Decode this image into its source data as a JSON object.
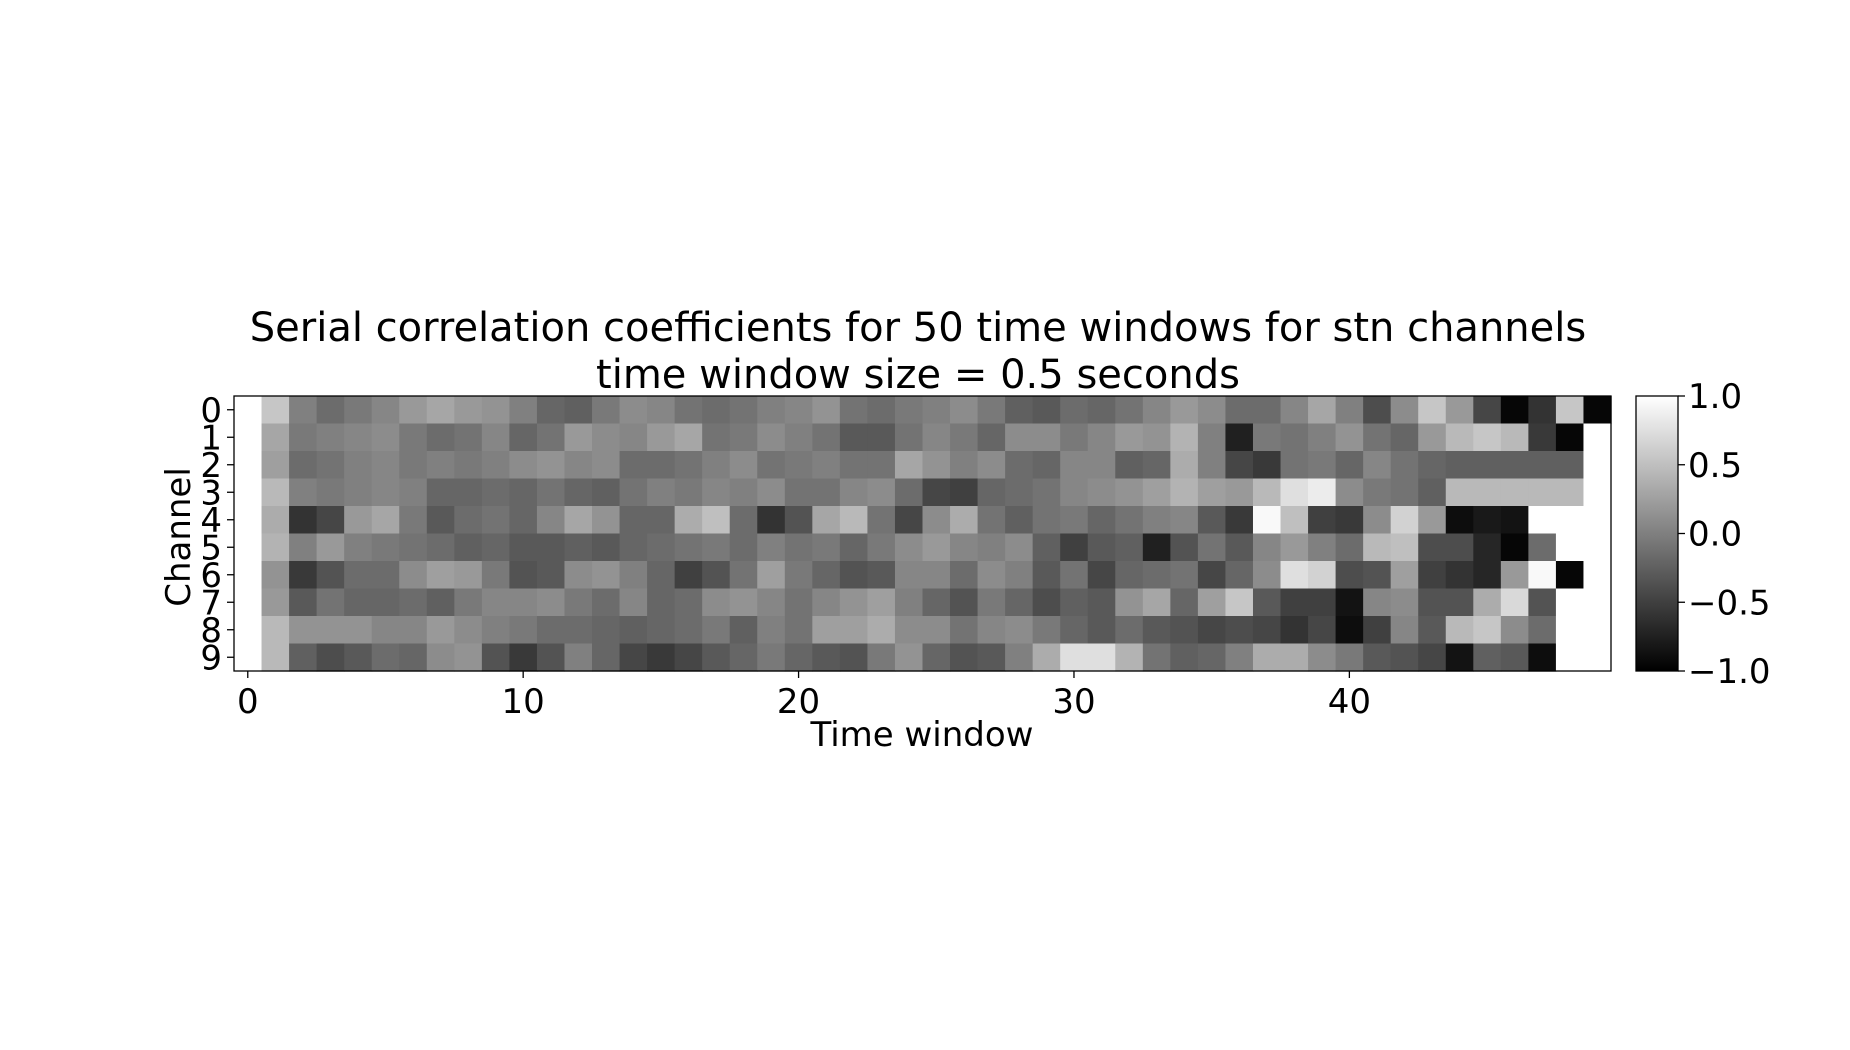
{
  "chart_data": {
    "type": "heatmap",
    "title": "Serial correlation coefficients for 50 time windows for stn channels",
    "subtitle": "time window size = 0.5 seconds",
    "xlabel": "Time window",
    "ylabel": "Channel",
    "x_ticks": [
      "0",
      "10",
      "20",
      "30",
      "40"
    ],
    "x_tick_values": [
      0,
      10,
      20,
      30,
      40
    ],
    "y_ticks": [
      "0",
      "1",
      "2",
      "3",
      "4",
      "5",
      "6",
      "7",
      "8",
      "9"
    ],
    "n_columns": 50,
    "colormap": "gray",
    "vmin": -1.0,
    "vmax": 1.0,
    "colorbar_ticks": [
      "1.0",
      "0.5",
      "0.0",
      "−0.5",
      "−1.0"
    ],
    "colorbar_tick_values": [
      1.0,
      0.5,
      0.0,
      -0.5,
      -1.0
    ],
    "grid": false,
    "values": [
      [
        1.0,
        0.55,
        0.0,
        -0.15,
        -0.05,
        0.05,
        0.2,
        0.3,
        0.2,
        0.15,
        0.0,
        -0.2,
        -0.25,
        -0.05,
        0.1,
        0.05,
        -0.1,
        -0.15,
        -0.1,
        0.0,
        0.05,
        0.15,
        -0.1,
        -0.15,
        -0.05,
        0.0,
        0.1,
        -0.05,
        -0.25,
        -0.3,
        -0.15,
        -0.2,
        -0.1,
        0.05,
        0.2,
        0.1,
        -0.15,
        -0.15,
        0.05,
        0.3,
        0.0,
        -0.4,
        0.1,
        0.55,
        0.2,
        -0.45,
        -0.95,
        -0.6,
        0.55,
        -0.95
      ],
      [
        1.0,
        0.3,
        -0.05,
        0.0,
        0.05,
        0.1,
        -0.05,
        -0.15,
        -0.1,
        0.05,
        -0.2,
        -0.1,
        0.2,
        0.1,
        0.05,
        0.2,
        0.3,
        -0.1,
        -0.05,
        0.1,
        0.0,
        -0.1,
        -0.3,
        -0.3,
        -0.1,
        0.05,
        -0.05,
        -0.2,
        0.1,
        0.1,
        -0.05,
        0.05,
        0.2,
        0.15,
        0.4,
        0.0,
        -0.75,
        -0.05,
        -0.1,
        0.0,
        0.15,
        -0.1,
        -0.2,
        0.2,
        0.45,
        0.55,
        0.45,
        -0.55,
        -0.95,
        null
      ],
      [
        1.0,
        0.25,
        -0.15,
        -0.1,
        0.0,
        0.05,
        -0.05,
        0.0,
        -0.05,
        0.0,
        0.1,
        0.15,
        0.05,
        0.1,
        -0.15,
        -0.15,
        -0.1,
        0.0,
        0.1,
        -0.1,
        -0.05,
        0.0,
        -0.1,
        -0.1,
        0.3,
        0.15,
        0.0,
        0.1,
        -0.15,
        -0.2,
        0.05,
        0.05,
        -0.25,
        -0.2,
        0.35,
        0.0,
        -0.45,
        -0.55,
        -0.1,
        -0.05,
        -0.2,
        0.05,
        -0.1,
        -0.2,
        -0.25,
        -0.25,
        -0.25,
        -0.25,
        -0.25,
        null
      ],
      [
        1.0,
        0.45,
        0.0,
        -0.05,
        0.0,
        0.05,
        0.0,
        -0.2,
        -0.2,
        -0.15,
        -0.2,
        -0.1,
        -0.2,
        -0.25,
        -0.1,
        0.0,
        -0.05,
        0.05,
        0.0,
        0.1,
        -0.1,
        -0.1,
        0.05,
        0.1,
        -0.15,
        -0.45,
        -0.5,
        -0.2,
        -0.15,
        -0.1,
        0.05,
        0.1,
        0.15,
        0.25,
        0.4,
        0.25,
        0.2,
        0.45,
        0.75,
        0.85,
        0.1,
        -0.05,
        -0.1,
        -0.25,
        0.45,
        0.45,
        0.45,
        0.45,
        0.45,
        null
      ],
      [
        1.0,
        0.35,
        -0.6,
        -0.45,
        0.2,
        0.3,
        -0.05,
        -0.3,
        -0.15,
        -0.1,
        -0.2,
        0.05,
        0.3,
        0.15,
        -0.2,
        -0.2,
        0.35,
        0.5,
        -0.15,
        -0.6,
        -0.35,
        0.3,
        0.45,
        -0.1,
        -0.45,
        0.1,
        0.35,
        -0.1,
        -0.25,
        -0.1,
        -0.05,
        -0.2,
        -0.1,
        0.0,
        0.05,
        -0.3,
        -0.55,
        0.95,
        0.5,
        -0.5,
        -0.55,
        0.1,
        0.65,
        0.2,
        -0.9,
        -0.8,
        -0.85,
        null,
        null,
        null
      ],
      [
        1.0,
        0.4,
        0.0,
        0.2,
        0.0,
        -0.05,
        -0.1,
        -0.15,
        -0.25,
        -0.2,
        -0.3,
        -0.3,
        -0.25,
        -0.3,
        -0.2,
        -0.15,
        -0.1,
        -0.05,
        -0.15,
        0.0,
        -0.1,
        -0.05,
        -0.2,
        -0.05,
        0.1,
        0.2,
        0.05,
        0.0,
        0.1,
        -0.25,
        -0.5,
        -0.3,
        -0.25,
        -0.75,
        -0.35,
        -0.1,
        -0.3,
        0.05,
        0.2,
        0.0,
        -0.15,
        0.45,
        0.5,
        -0.4,
        -0.4,
        -0.7,
        -0.95,
        -0.15,
        null,
        null
      ],
      [
        1.0,
        0.15,
        -0.55,
        -0.35,
        -0.15,
        -0.15,
        0.1,
        0.25,
        0.2,
        -0.05,
        -0.35,
        -0.3,
        0.1,
        0.15,
        0.0,
        -0.2,
        -0.5,
        -0.35,
        -0.1,
        0.25,
        -0.05,
        -0.2,
        -0.35,
        -0.3,
        0.05,
        0.05,
        -0.15,
        0.1,
        0.0,
        -0.3,
        -0.1,
        -0.45,
        -0.2,
        -0.15,
        -0.1,
        -0.45,
        -0.2,
        0.1,
        0.75,
        0.65,
        -0.4,
        -0.35,
        0.25,
        -0.5,
        -0.6,
        -0.7,
        0.2,
        0.95,
        -0.95,
        null
      ],
      [
        1.0,
        0.2,
        -0.3,
        -0.1,
        -0.2,
        -0.2,
        -0.15,
        -0.25,
        -0.05,
        0.05,
        0.05,
        0.1,
        -0.05,
        -0.15,
        0.05,
        -0.2,
        -0.15,
        0.1,
        0.15,
        0.05,
        -0.1,
        0.05,
        0.15,
        0.25,
        0.0,
        -0.2,
        -0.35,
        -0.05,
        -0.2,
        -0.4,
        -0.25,
        -0.3,
        0.15,
        0.3,
        -0.2,
        0.25,
        0.55,
        -0.3,
        -0.5,
        -0.5,
        -0.85,
        0.05,
        0.1,
        -0.35,
        -0.35,
        0.35,
        0.7,
        -0.35,
        null,
        null
      ],
      [
        1.0,
        0.45,
        0.15,
        0.15,
        0.15,
        0.05,
        0.05,
        0.2,
        0.1,
        0.0,
        -0.05,
        -0.15,
        -0.15,
        -0.2,
        -0.25,
        -0.2,
        -0.15,
        -0.05,
        -0.25,
        0.0,
        -0.1,
        0.25,
        0.25,
        0.35,
        0.1,
        0.1,
        -0.1,
        0.05,
        0.1,
        -0.05,
        -0.2,
        -0.3,
        -0.15,
        -0.3,
        -0.35,
        -0.45,
        -0.4,
        -0.45,
        -0.6,
        -0.45,
        -0.9,
        -0.5,
        0.05,
        -0.3,
        0.45,
        0.55,
        0.1,
        -0.15,
        null,
        null
      ],
      [
        1.0,
        0.45,
        -0.25,
        -0.4,
        -0.3,
        -0.15,
        -0.2,
        0.1,
        0.15,
        -0.35,
        -0.55,
        -0.35,
        0.0,
        -0.2,
        -0.45,
        -0.55,
        -0.45,
        -0.3,
        -0.2,
        -0.05,
        -0.2,
        -0.3,
        -0.35,
        -0.05,
        0.15,
        -0.2,
        -0.35,
        -0.3,
        0.0,
        0.35,
        0.75,
        0.75,
        0.4,
        -0.1,
        -0.25,
        -0.2,
        0.0,
        0.35,
        0.35,
        0.1,
        -0.05,
        -0.3,
        -0.35,
        -0.45,
        -0.85,
        -0.25,
        -0.3,
        -0.9,
        null,
        null
      ]
    ]
  }
}
